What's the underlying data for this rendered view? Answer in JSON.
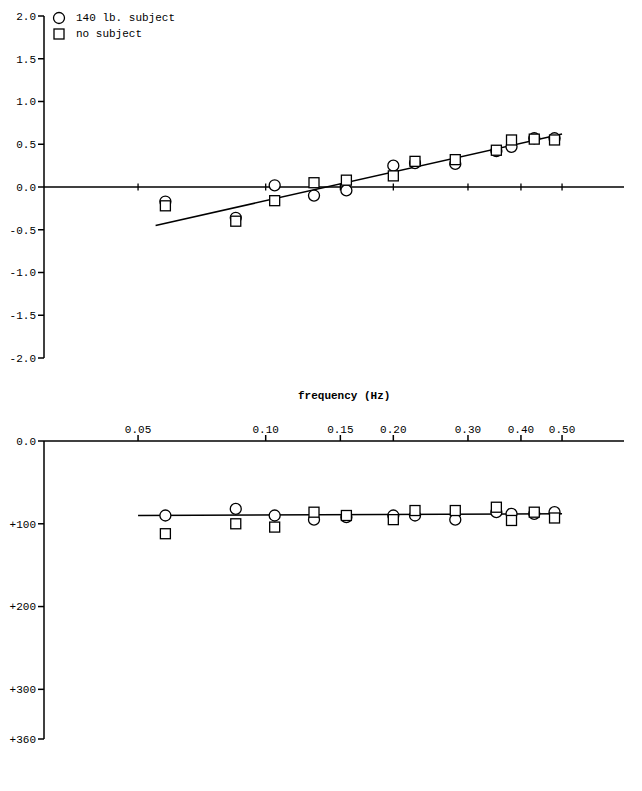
{
  "chart_data": [
    {
      "type": "scatter",
      "log": "x",
      "tick_labels": "y",
      "legend": "upper left",
      "x": [
        0.058,
        0.085,
        0.105,
        0.13,
        0.155,
        0.2,
        0.225,
        0.28,
        0.35,
        0.38,
        0.43,
        0.48
      ],
      "xlim": [
        0.03,
        0.7
      ],
      "xticks": [
        0.05,
        {
          "value": 0.1,
          "label": "0.10"
        },
        0.15,
        {
          "value": 0.2,
          "label": "0.20"
        },
        {
          "value": 0.3,
          "label": "0.30"
        },
        {
          "value": 0.4,
          "label": "0.40"
        },
        {
          "value": 0.5,
          "label": "0.50"
        }
      ],
      "ylim": [
        -2,
        2
      ],
      "yticks": [
        {
          "value": 2,
          "label": "2.0"
        },
        1.5,
        {
          "value": 1,
          "label": "1.0"
        },
        0.5,
        {
          "value": 0,
          "label": "0.0"
        },
        -0.5,
        {
          "value": -1,
          "label": "-1.0"
        },
        -1.5,
        {
          "value": -2,
          "label": "-2.0"
        }
      ],
      "series": [
        {
          "name": "140 lb. subject",
          "color": "#000000",
          "marker": "circle",
          "values": [
            -0.17,
            -0.36,
            0.02,
            -0.1,
            -0.04,
            0.25,
            0.28,
            0.27,
            0.42,
            0.47,
            0.57,
            0.57
          ]
        },
        {
          "name": "no subject",
          "color": "#000000",
          "marker": "square",
          "values": [
            -0.22,
            -0.4,
            -0.16,
            0.05,
            0.08,
            0.13,
            0.3,
            0.32,
            0.43,
            0.55,
            0.56,
            0.55
          ]
        },
        {
          "type": "line",
          "color": "#000000",
          "line_style": "solid",
          "x": [
            0.055,
            0.5
          ],
          "values": [
            -0.45,
            0.62
          ]
        }
      ]
    },
    {
      "type": "scatter",
      "log": "x",
      "x_label": "frequency (Hz)",
      "x": [
        0.058,
        0.085,
        0.105,
        0.13,
        0.155,
        0.2,
        0.225,
        0.28,
        0.35,
        0.38,
        0.43,
        0.48
      ],
      "xlim": [
        0.03,
        0.7
      ],
      "xticks": [
        0.05,
        {
          "value": 0.1,
          "label": "0.10"
        },
        0.15,
        {
          "value": 0.2,
          "label": "0.20"
        },
        {
          "value": 0.3,
          "label": "0.30"
        },
        {
          "value": 0.4,
          "label": "0.40"
        },
        {
          "value": 0.5,
          "label": "0.50"
        }
      ],
      "ylim": [
        360,
        0
      ],
      "yticks": [
        {
          "value": 0,
          "label": "0.0"
        },
        {
          "value": 100,
          "label": "+100"
        },
        {
          "value": 200,
          "label": "+200"
        },
        {
          "value": 300,
          "label": "+300"
        },
        {
          "value": 360,
          "label": "+360"
        }
      ],
      "series": [
        {
          "name": "140 lb. subject",
          "color": "#000000",
          "marker": "circle",
          "values": [
            90,
            82,
            90,
            95,
            92,
            90,
            90,
            95,
            86,
            88,
            88,
            86
          ]
        },
        {
          "name": "no subject",
          "color": "#000000",
          "marker": "square",
          "values": [
            112,
            100,
            104,
            86,
            90,
            95,
            84,
            84,
            80,
            96,
            86,
            93
          ]
        },
        {
          "type": "line",
          "color": "#000000",
          "line_style": "solid",
          "x": [
            0.05,
            0.5
          ],
          "values": [
            90,
            88
          ]
        }
      ]
    }
  ]
}
